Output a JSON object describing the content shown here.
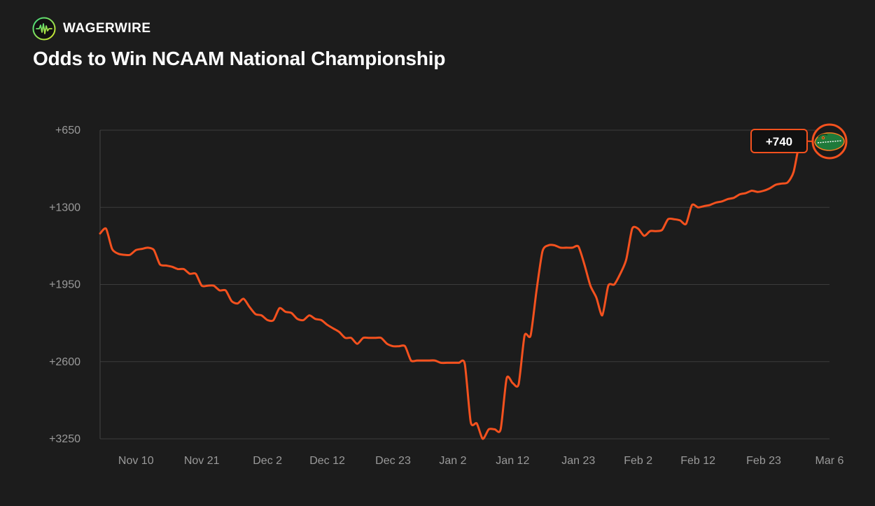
{
  "brand": {
    "name": "WAGERWIRE",
    "logo_icon": "pulse-wave-icon"
  },
  "colors": {
    "background": "#1c1c1c",
    "line": "#f4511e",
    "grid": "#3c3c3c",
    "axis": "#444444",
    "tick_text": "#9a9a9a",
    "callout_bg": "#111111"
  },
  "chart_data": {
    "type": "line",
    "title": "Odds to Win NCAAM National Championship",
    "xlabel": "",
    "ylabel": "",
    "y_reversed": true,
    "ylim": [
      3250,
      650
    ],
    "grid": "horizontal",
    "yticks": [
      650,
      1300,
      1950,
      2600,
      3250
    ],
    "ytick_labels": [
      "+650",
      "+1300",
      "+1950",
      "+2600",
      "+3250"
    ],
    "xlim": [
      "2024-11-04",
      "2025-03-06"
    ],
    "xticks": [
      "2024-11-10",
      "2024-11-21",
      "2024-12-02",
      "2024-12-12",
      "2024-12-23",
      "2025-01-02",
      "2025-01-12",
      "2025-01-23",
      "2025-02-02",
      "2025-02-12",
      "2025-02-23",
      "2025-03-06"
    ],
    "xtick_labels": [
      "Nov 10",
      "Nov 21",
      "Dec 2",
      "Dec 12",
      "Dec 23",
      "Jan 2",
      "Jan 12",
      "Jan 23",
      "Feb 2",
      "Feb 12",
      "Feb 23",
      "Mar 6"
    ],
    "series": [
      {
        "team_logo": "florida-gator-icon",
        "latest_label": "+740",
        "points": [
          [
            "2024-11-04",
            1520
          ],
          [
            "2024-11-05",
            1480
          ],
          [
            "2024-11-06",
            1650
          ],
          [
            "2024-11-07",
            1690
          ],
          [
            "2024-11-08",
            1700
          ],
          [
            "2024-11-09",
            1700
          ],
          [
            "2024-11-10",
            1660
          ],
          [
            "2024-11-11",
            1650
          ],
          [
            "2024-11-12",
            1640
          ],
          [
            "2024-11-13",
            1660
          ],
          [
            "2024-11-14",
            1780
          ],
          [
            "2024-11-15",
            1790
          ],
          [
            "2024-11-16",
            1800
          ],
          [
            "2024-11-17",
            1820
          ],
          [
            "2024-11-18",
            1820
          ],
          [
            "2024-11-19",
            1860
          ],
          [
            "2024-11-20",
            1860
          ],
          [
            "2024-11-21",
            1960
          ],
          [
            "2024-11-22",
            1960
          ],
          [
            "2024-11-23",
            1960
          ],
          [
            "2024-11-24",
            2000
          ],
          [
            "2024-11-25",
            2000
          ],
          [
            "2024-11-26",
            2090
          ],
          [
            "2024-11-27",
            2110
          ],
          [
            "2024-11-28",
            2070
          ],
          [
            "2024-11-29",
            2140
          ],
          [
            "2024-11-30",
            2200
          ],
          [
            "2024-12-01",
            2210
          ],
          [
            "2024-12-02",
            2250
          ],
          [
            "2024-12-03",
            2250
          ],
          [
            "2024-12-04",
            2150
          ],
          [
            "2024-12-05",
            2180
          ],
          [
            "2024-12-06",
            2190
          ],
          [
            "2024-12-07",
            2240
          ],
          [
            "2024-12-08",
            2250
          ],
          [
            "2024-12-09",
            2210
          ],
          [
            "2024-12-10",
            2240
          ],
          [
            "2024-12-11",
            2250
          ],
          [
            "2024-12-12",
            2290
          ],
          [
            "2024-12-13",
            2320
          ],
          [
            "2024-12-14",
            2350
          ],
          [
            "2024-12-15",
            2400
          ],
          [
            "2024-12-16",
            2400
          ],
          [
            "2024-12-17",
            2450
          ],
          [
            "2024-12-18",
            2400
          ],
          [
            "2024-12-19",
            2400
          ],
          [
            "2024-12-20",
            2400
          ],
          [
            "2024-12-21",
            2400
          ],
          [
            "2024-12-22",
            2450
          ],
          [
            "2024-12-23",
            2470
          ],
          [
            "2024-12-24",
            2470
          ],
          [
            "2024-12-25",
            2470
          ],
          [
            "2024-12-26",
            2590
          ],
          [
            "2024-12-27",
            2590
          ],
          [
            "2024-12-28",
            2590
          ],
          [
            "2024-12-29",
            2590
          ],
          [
            "2024-12-30",
            2590
          ],
          [
            "2024-12-31",
            2610
          ],
          [
            "2025-01-01",
            2610
          ],
          [
            "2025-01-02",
            2610
          ],
          [
            "2025-01-03",
            2610
          ],
          [
            "2025-01-04",
            2620
          ],
          [
            "2025-01-05",
            3110
          ],
          [
            "2025-01-06",
            3120
          ],
          [
            "2025-01-07",
            3250
          ],
          [
            "2025-01-08",
            3170
          ],
          [
            "2025-01-09",
            3170
          ],
          [
            "2025-01-10",
            3170
          ],
          [
            "2025-01-11",
            2740
          ],
          [
            "2025-01-12",
            2780
          ],
          [
            "2025-01-13",
            2790
          ],
          [
            "2025-01-14",
            2380
          ],
          [
            "2025-01-15",
            2380
          ],
          [
            "2025-01-16",
            2000
          ],
          [
            "2025-01-17",
            1670
          ],
          [
            "2025-01-18",
            1620
          ],
          [
            "2025-01-19",
            1620
          ],
          [
            "2025-01-20",
            1640
          ],
          [
            "2025-01-21",
            1640
          ],
          [
            "2025-01-22",
            1640
          ],
          [
            "2025-01-23",
            1630
          ],
          [
            "2025-01-24",
            1780
          ],
          [
            "2025-01-25",
            1960
          ],
          [
            "2025-01-26",
            2060
          ],
          [
            "2025-01-27",
            2210
          ],
          [
            "2025-01-28",
            1960
          ],
          [
            "2025-01-29",
            1950
          ],
          [
            "2025-01-30",
            1860
          ],
          [
            "2025-01-31",
            1740
          ],
          [
            "2025-02-01",
            1480
          ],
          [
            "2025-02-02",
            1480
          ],
          [
            "2025-02-03",
            1540
          ],
          [
            "2025-02-04",
            1500
          ],
          [
            "2025-02-05",
            1500
          ],
          [
            "2025-02-06",
            1490
          ],
          [
            "2025-02-07",
            1400
          ],
          [
            "2025-02-08",
            1400
          ],
          [
            "2025-02-09",
            1410
          ],
          [
            "2025-02-10",
            1440
          ],
          [
            "2025-02-11",
            1280
          ],
          [
            "2025-02-12",
            1300
          ],
          [
            "2025-02-13",
            1290
          ],
          [
            "2025-02-14",
            1280
          ],
          [
            "2025-02-15",
            1260
          ],
          [
            "2025-02-16",
            1250
          ],
          [
            "2025-02-17",
            1230
          ],
          [
            "2025-02-18",
            1220
          ],
          [
            "2025-02-19",
            1190
          ],
          [
            "2025-02-20",
            1180
          ],
          [
            "2025-02-21",
            1160
          ],
          [
            "2025-02-22",
            1170
          ],
          [
            "2025-02-23",
            1160
          ],
          [
            "2025-02-24",
            1140
          ],
          [
            "2025-02-25",
            1110
          ],
          [
            "2025-02-26",
            1100
          ],
          [
            "2025-02-27",
            1090
          ],
          [
            "2025-02-28",
            1000
          ],
          [
            "2025-03-01",
            740
          ]
        ]
      }
    ]
  }
}
